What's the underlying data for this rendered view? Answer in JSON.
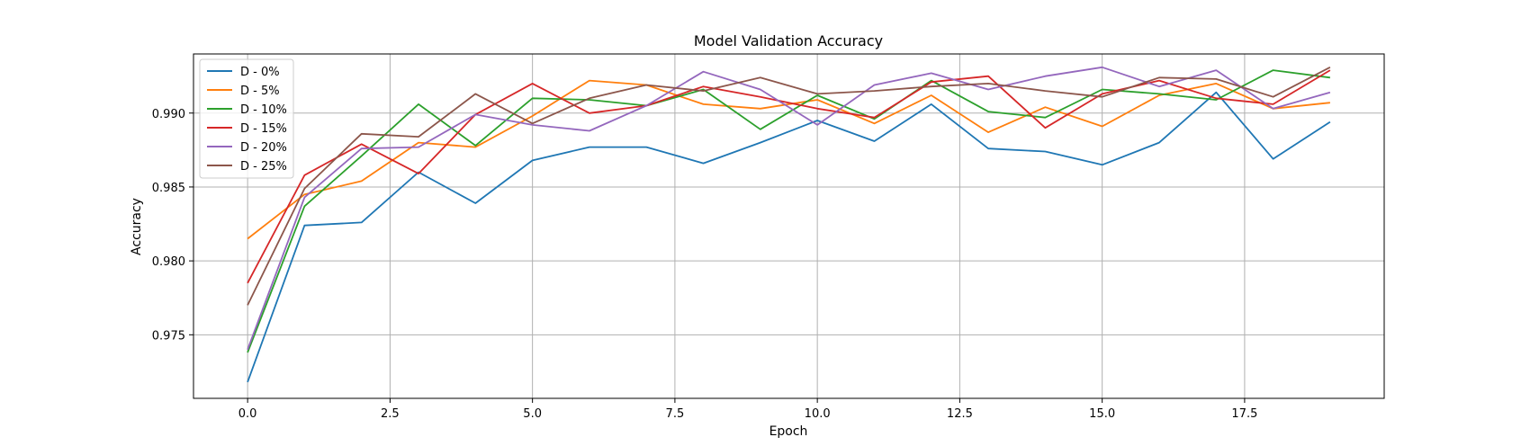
{
  "chart_data": {
    "type": "line",
    "title": "Model Validation Accuracy",
    "xlabel": "Epoch",
    "ylabel": "Accuracy",
    "xlim": [
      -0.95,
      19.95
    ],
    "ylim": [
      0.9707,
      0.994
    ],
    "xticks": [
      0.0,
      2.5,
      5.0,
      7.5,
      10.0,
      12.5,
      15.0,
      17.5
    ],
    "xtick_labels": [
      "0.0",
      "2.5",
      "5.0",
      "7.5",
      "10.0",
      "12.5",
      "15.0",
      "17.5"
    ],
    "yticks": [
      0.975,
      0.98,
      0.985,
      0.99
    ],
    "ytick_labels": [
      "0.975",
      "0.980",
      "0.985",
      "0.990"
    ],
    "grid": true,
    "legend_position": "top-left",
    "x": [
      0,
      1,
      2,
      3,
      4,
      5,
      6,
      7,
      8,
      9,
      10,
      11,
      12,
      13,
      14,
      15,
      16,
      17,
      18,
      19
    ],
    "series": [
      {
        "name": "D - 0%",
        "color": "#1f77b4",
        "values": [
          0.9718,
          0.9824,
          0.9826,
          0.986,
          0.9839,
          0.9868,
          0.9877,
          0.9877,
          0.9866,
          0.988,
          0.9895,
          0.9881,
          0.9906,
          0.9876,
          0.9874,
          0.9865,
          0.988,
          0.9914,
          0.9869,
          0.9894
        ]
      },
      {
        "name": "D - 5%",
        "color": "#ff7f0e",
        "values": [
          0.9815,
          0.9845,
          0.9854,
          0.988,
          0.9877,
          0.9898,
          0.9922,
          0.9919,
          0.9906,
          0.9903,
          0.9909,
          0.9893,
          0.9912,
          0.9887,
          0.9904,
          0.9891,
          0.9912,
          0.992,
          0.9903,
          0.9907
        ]
      },
      {
        "name": "D - 10%",
        "color": "#2ca02c",
        "values": [
          0.9738,
          0.9837,
          0.9871,
          0.9906,
          0.9878,
          0.991,
          0.9909,
          0.9905,
          0.9916,
          0.9889,
          0.9912,
          0.9896,
          0.9922,
          0.9901,
          0.9897,
          0.9916,
          0.9913,
          0.9909,
          0.9929,
          0.9924
        ]
      },
      {
        "name": "D - 15%",
        "color": "#d62728",
        "values": [
          0.9785,
          0.9858,
          0.9879,
          0.9859,
          0.9899,
          0.992,
          0.99,
          0.9905,
          0.9918,
          0.9911,
          0.9903,
          0.9897,
          0.9921,
          0.9925,
          0.989,
          0.9913,
          0.9922,
          0.991,
          0.9906,
          0.9929
        ]
      },
      {
        "name": "D - 20%",
        "color": "#9467bd",
        "values": [
          0.974,
          0.9843,
          0.9876,
          0.9877,
          0.9899,
          0.9892,
          0.9888,
          0.9905,
          0.9928,
          0.9916,
          0.9892,
          0.9919,
          0.9927,
          0.9916,
          0.9925,
          0.9931,
          0.9918,
          0.9929,
          0.9903,
          0.9914
        ]
      },
      {
        "name": "D - 25%",
        "color": "#8c564b",
        "values": [
          0.977,
          0.9849,
          0.9886,
          0.9884,
          0.9913,
          0.9893,
          0.991,
          0.9919,
          0.9915,
          0.9924,
          0.9913,
          0.9915,
          0.9918,
          0.992,
          0.9915,
          0.9911,
          0.9924,
          0.9923,
          0.9911,
          0.9931
        ]
      }
    ]
  }
}
